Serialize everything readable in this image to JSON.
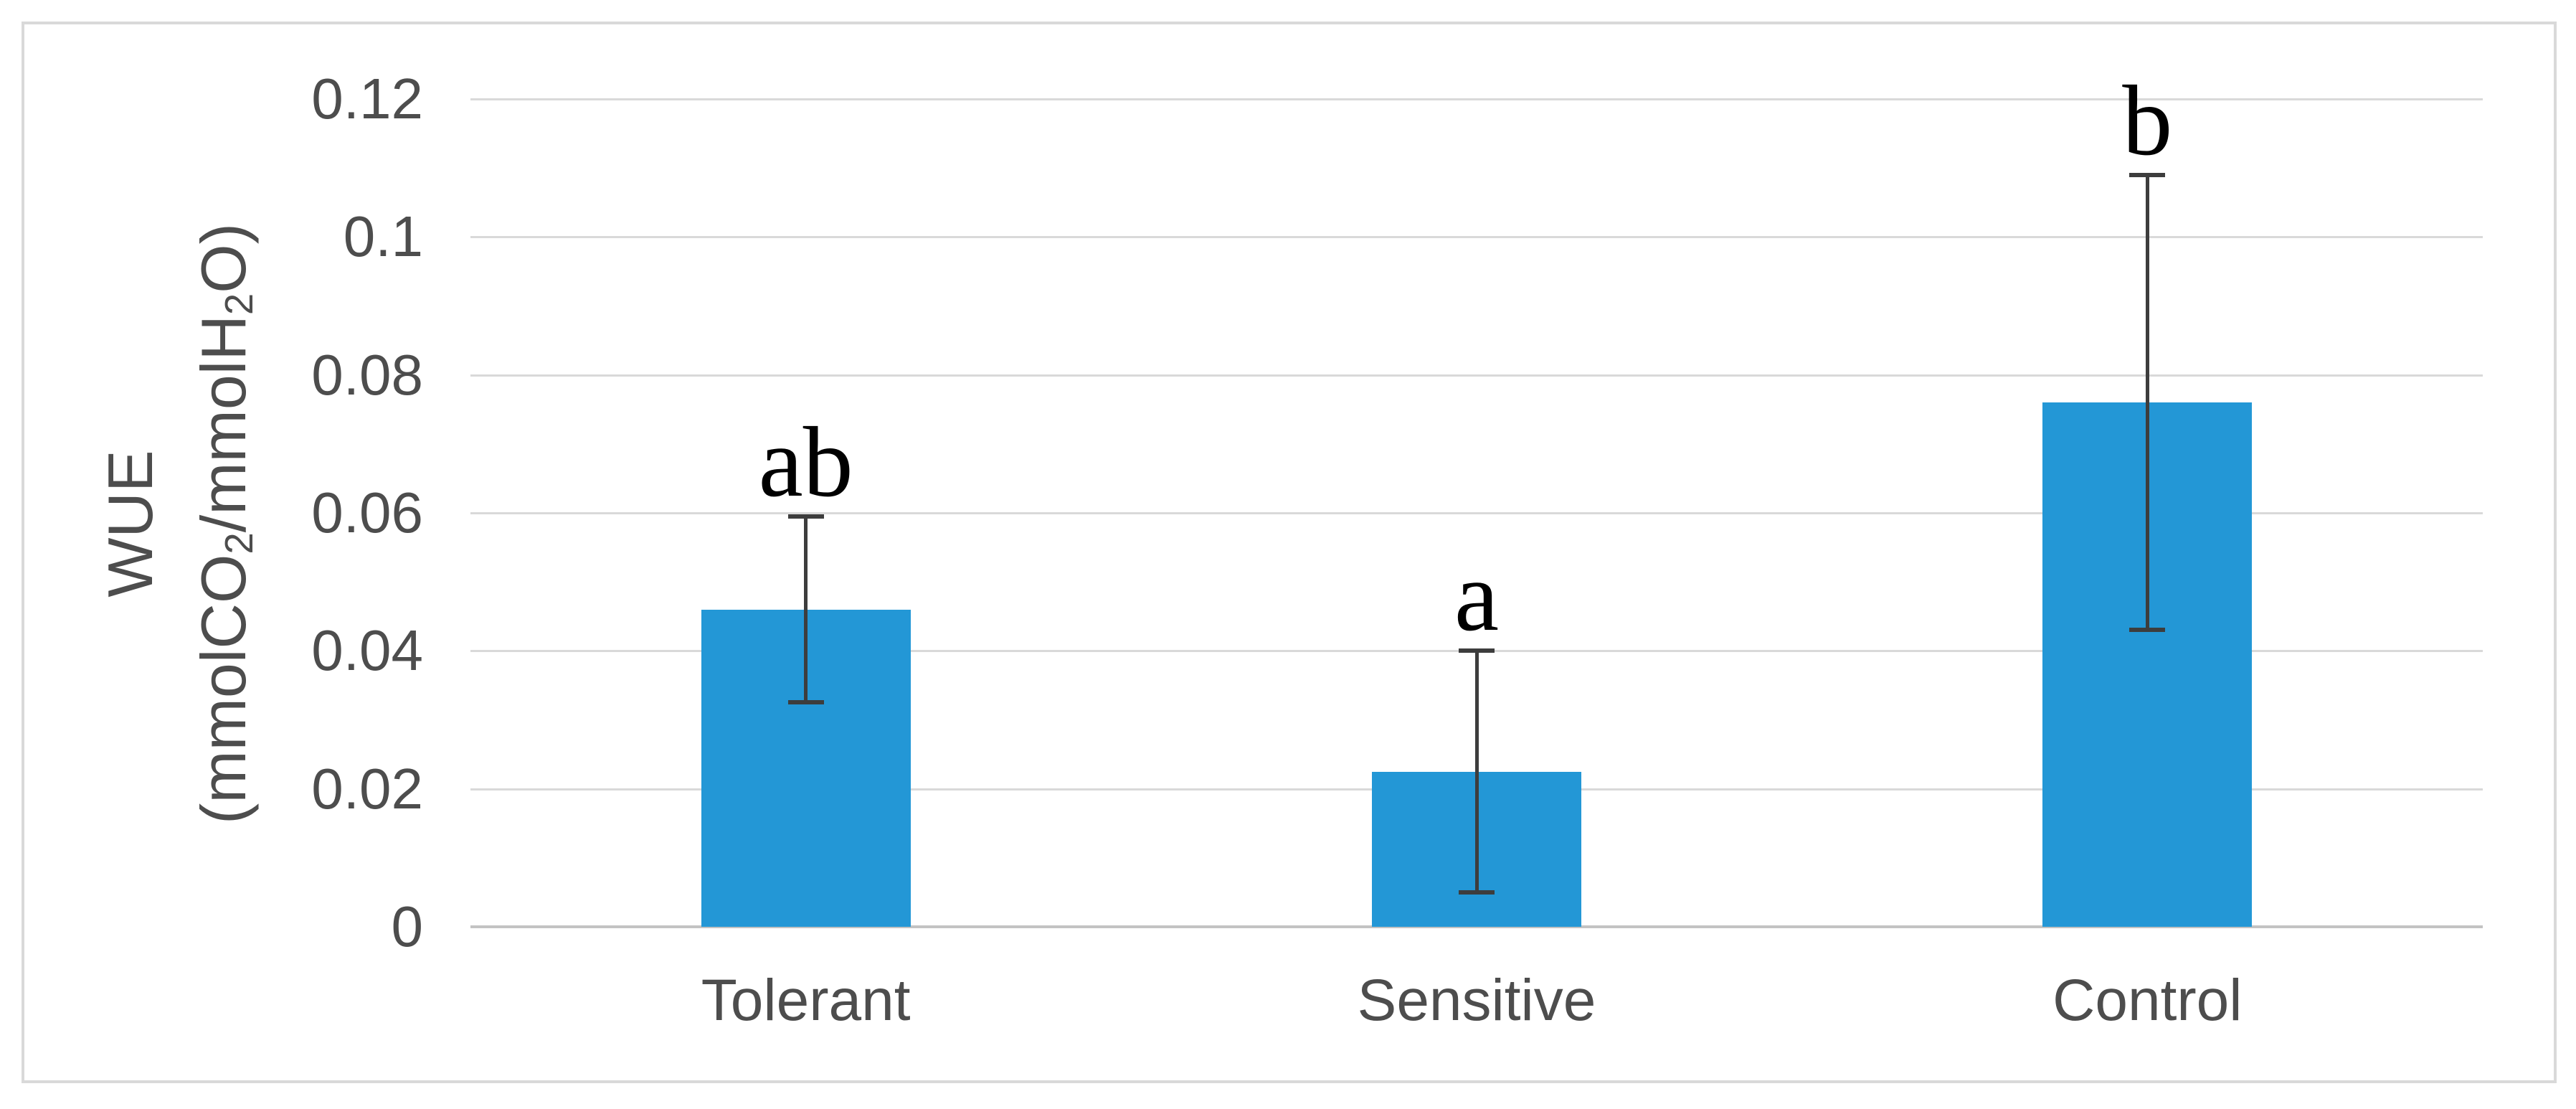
{
  "figure": {
    "background_color": "#ffffff",
    "border_color": "#d9d9d9"
  },
  "chart_data": {
    "type": "bar",
    "title": "",
    "xlabel": "",
    "ylabel": "WUE (mmolCO2/mmolH2O)",
    "ylabel_line1": "WUE",
    "ylabel_line2_tokens": [
      {
        "text": "(mmolCO"
      },
      {
        "text": "2",
        "subscript": true
      },
      {
        "text": "/mmolH"
      },
      {
        "text": "2",
        "subscript": true
      },
      {
        "text": "O)"
      }
    ],
    "categories": [
      "Tolerant",
      "Sensitive",
      "Control"
    ],
    "series": [
      {
        "name": "WUE",
        "values": [
          0.046,
          0.0225,
          0.076
        ]
      }
    ],
    "error_bars": {
      "symmetric": true,
      "values": [
        0.0135,
        0.0175,
        0.033
      ]
    },
    "significance_letters": [
      "ab",
      "a",
      "b"
    ],
    "yticks": [
      {
        "label": "0.12",
        "value": 0.12
      },
      {
        "label": "0.1",
        "value": 0.1
      },
      {
        "label": "0.08",
        "value": 0.08
      },
      {
        "label": "0.06",
        "value": 0.06
      },
      {
        "label": "0.04",
        "value": 0.04
      },
      {
        "label": "0.02",
        "value": 0.02
      },
      {
        "label": "0",
        "value": 0
      }
    ],
    "ylim": [
      0,
      0.12
    ],
    "grid": true,
    "legend": "none",
    "colors": {
      "bar_fill": "#2397d6",
      "gridline": "#d9d9d9",
      "axis_line": "#c3c3c3",
      "error_bar": "#3d3d3d",
      "axis_text": "#4d4d4d",
      "letter_text": "#000000"
    }
  }
}
